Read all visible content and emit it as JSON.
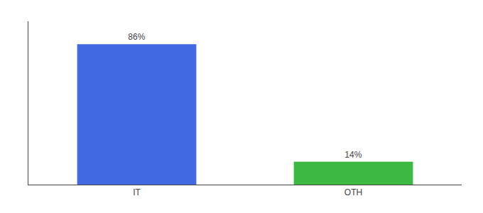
{
  "chart_data": {
    "type": "bar",
    "categories": [
      "IT",
      "OTH"
    ],
    "values": [
      86,
      14
    ],
    "value_labels": [
      "86%",
      "14%"
    ],
    "colors": [
      "#4169e1",
      "#3cb843"
    ],
    "ylim": [
      0,
      100
    ],
    "grid": false,
    "data_labels": true,
    "tick_labels": "x"
  }
}
